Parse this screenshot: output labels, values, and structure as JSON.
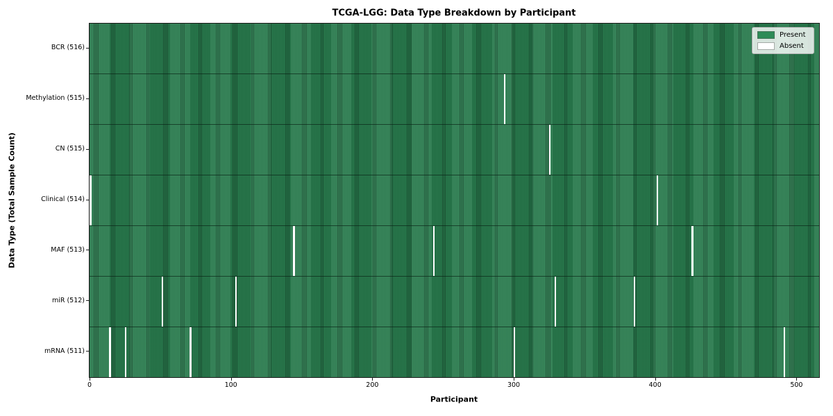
{
  "title": "TCGA-LGG: Data Type Breakdown by Participant",
  "chart_data": {
    "type": "heatmap",
    "title": "TCGA-LGG: Data Type Breakdown by Participant",
    "xlabel": "Participant",
    "ylabel": "Data Type (Total Sample Count)",
    "x_ticks": [
      0,
      100,
      200,
      300,
      400,
      500
    ],
    "x_range": [
      0,
      516
    ],
    "total_participants": 516,
    "grid": false,
    "legend": {
      "position": "upper right",
      "items": [
        {
          "label": "Present",
          "color": "#2e8b57"
        },
        {
          "label": "Absent",
          "color": "#ffffff"
        }
      ]
    },
    "colors": {
      "present": "#2e8b57",
      "absent": "#ffffff",
      "bar_edge": "#10301f"
    },
    "rows": [
      {
        "label": "BCR (516)",
        "data_type": "BCR",
        "present_count": 516,
        "absent_participants": []
      },
      {
        "label": "Methylation (515)",
        "data_type": "Methylation",
        "present_count": 515,
        "absent_participants": [
          293
        ]
      },
      {
        "label": "CN (515)",
        "data_type": "CN",
        "present_count": 515,
        "absent_participants": [
          325
        ]
      },
      {
        "label": "Clinical (514)",
        "data_type": "Clinical",
        "present_count": 514,
        "absent_participants": [
          0,
          401
        ]
      },
      {
        "label": "MAF (513)",
        "data_type": "MAF",
        "present_count": 513,
        "absent_participants": [
          144,
          243,
          426
        ]
      },
      {
        "label": "miR (512)",
        "data_type": "miR",
        "present_count": 512,
        "absent_participants": [
          51,
          103,
          329,
          385
        ]
      },
      {
        "label": "mRNA (511)",
        "data_type": "mRNA",
        "present_count": 511,
        "absent_participants": [
          14,
          25,
          71,
          300,
          491
        ]
      }
    ]
  }
}
